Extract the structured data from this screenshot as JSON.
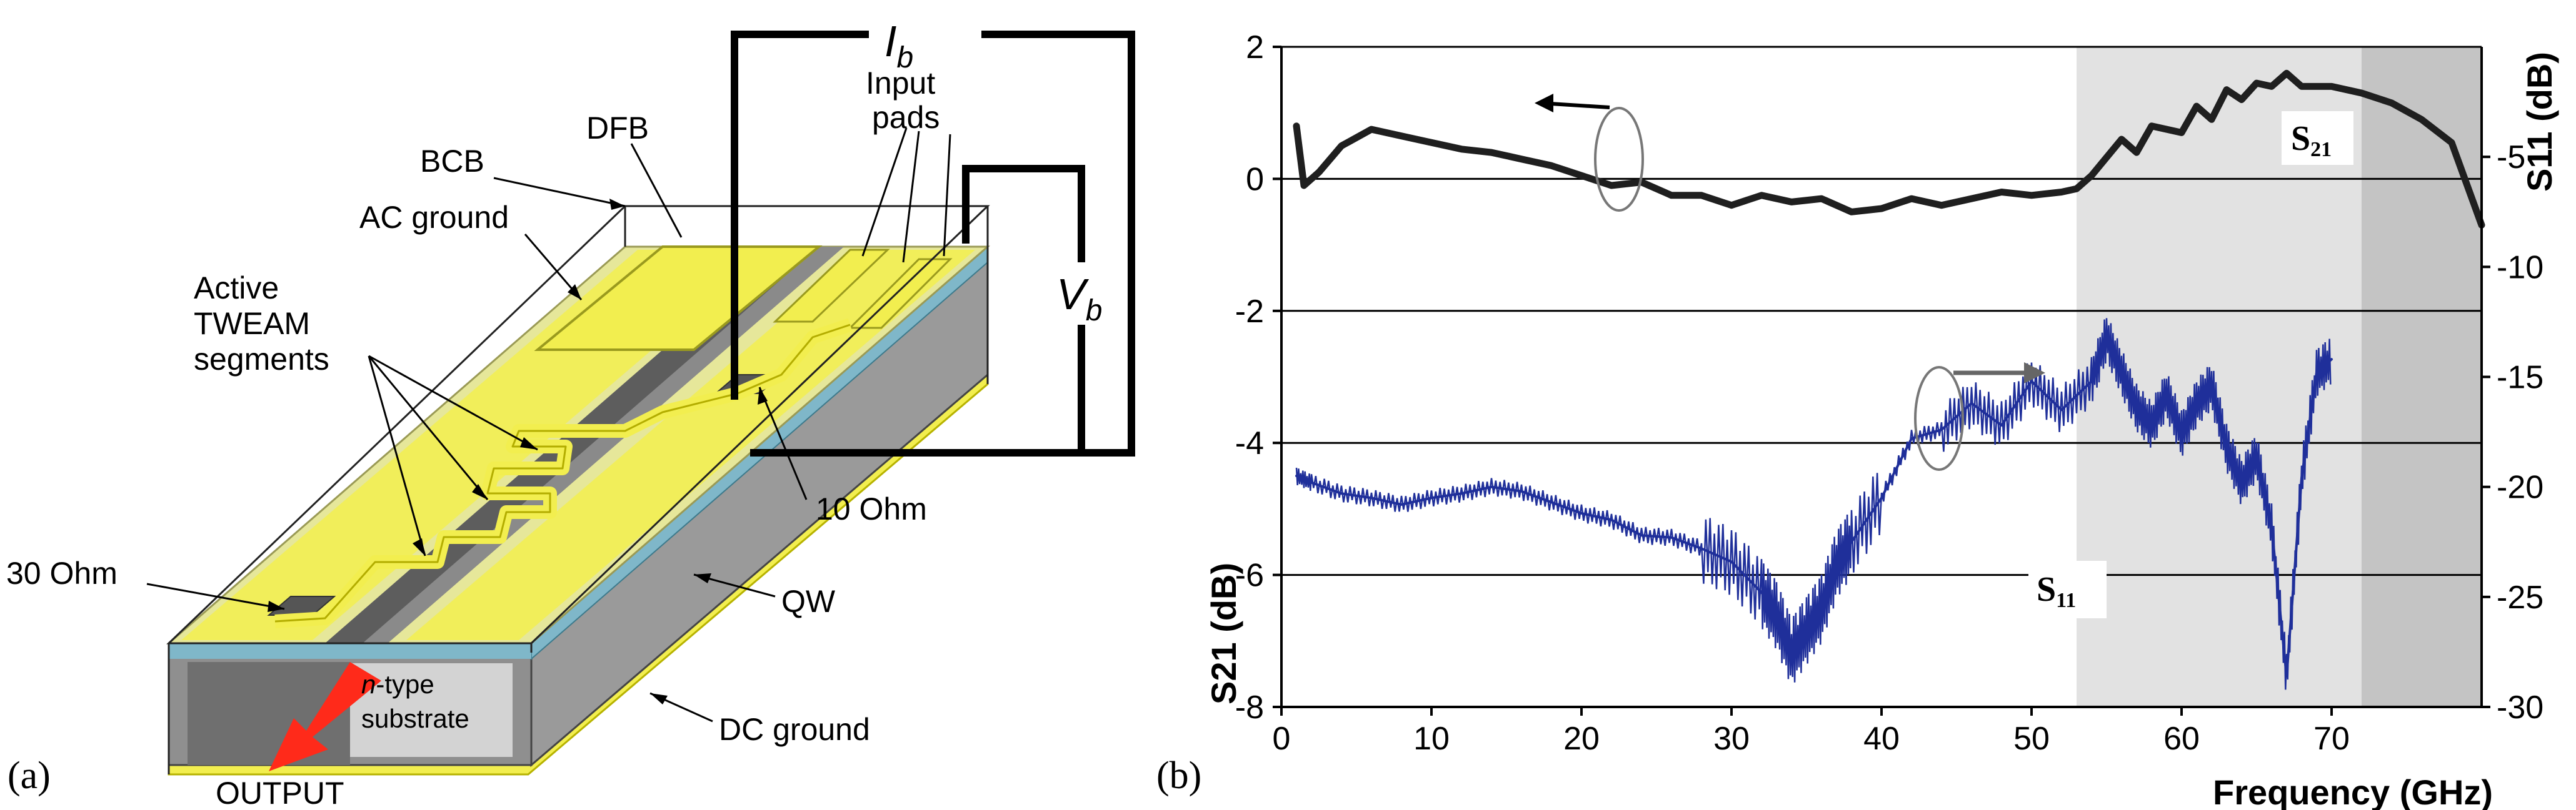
{
  "panel_a": {
    "panel_label": "(a)",
    "labels": {
      "bcb": "BCB",
      "dfb": "DFB",
      "ac_ground": "AC ground",
      "input_pads_1": "Input",
      "input_pads_2": "pads",
      "ib": "I",
      "ib_sub": "b",
      "vb": "V",
      "vb_sub": "b",
      "active_1": "Active",
      "active_2": "TWEAM",
      "active_3": "segments",
      "ohm10": "10 Ohm",
      "ohm30": "30 Ohm",
      "qw": "QW",
      "ntype_1": "n",
      "ntype_1b": "-type",
      "ntype_2": "substrate",
      "dc_ground": "DC ground",
      "output": "OUTPUT"
    },
    "colors": {
      "metal": "#f2ee4f",
      "bcb_top": "#e6e79a",
      "substrate": "#8c8c8c",
      "qw": "#7fb7c9",
      "output_arrow": "#ff2a1a"
    }
  },
  "panel_b": {
    "panel_label": "(b)",
    "s21_label": "S",
    "s21_sub": "21",
    "s11_label": "S",
    "s11_sub": "11",
    "colors": {
      "s21": "#1f1f1f",
      "s11": "#1f2f9a",
      "shade_light": "#e2e2e2",
      "shade_dark": "#c4c4c4"
    }
  },
  "chart_data": {
    "type": "line",
    "xlabel": "Frequency (GHz)",
    "ylabel_left": "S21 (dB)",
    "ylabel_right": "S11 (dB)",
    "xlim": [
      0,
      80
    ],
    "ylim_left": [
      -8,
      2
    ],
    "ylim_right": [
      -30,
      0
    ],
    "x_ticks": [
      "0",
      "10",
      "20",
      "30",
      "40",
      "50",
      "60",
      "70"
    ],
    "y_ticks_left": [
      "2",
      "0",
      "-2",
      "-4",
      "-6",
      "-8"
    ],
    "y_ticks_right": [
      "-5",
      "-10",
      "-15",
      "-20",
      "-25",
      "-30"
    ],
    "grid": "horizontal",
    "shaded_regions": [
      {
        "x_from": 53,
        "x_to": 72,
        "shade": "light"
      },
      {
        "x_from": 72,
        "x_to": 80,
        "shade": "dark"
      }
    ],
    "series": [
      {
        "name": "S21",
        "axis": "left",
        "x": [
          1,
          1.5,
          2.5,
          4,
          6,
          8,
          10,
          12,
          14,
          16,
          18,
          20,
          22,
          24,
          26,
          28,
          30,
          32,
          34,
          36,
          38,
          40,
          42,
          44,
          46,
          48,
          50,
          52,
          53,
          54,
          56,
          57,
          58,
          60,
          61,
          62,
          63,
          64,
          65,
          66,
          67,
          68,
          70,
          72,
          74,
          76,
          78,
          80
        ],
        "y": [
          0.8,
          -0.1,
          0.1,
          0.5,
          0.75,
          0.65,
          0.55,
          0.45,
          0.4,
          0.3,
          0.2,
          0.05,
          -0.1,
          -0.05,
          -0.25,
          -0.25,
          -0.4,
          -0.25,
          -0.35,
          -0.3,
          -0.5,
          -0.45,
          -0.3,
          -0.4,
          -0.3,
          -0.2,
          -0.25,
          -0.2,
          -0.15,
          0.05,
          0.6,
          0.4,
          0.8,
          0.7,
          1.1,
          0.9,
          1.35,
          1.2,
          1.45,
          1.4,
          1.6,
          1.4,
          1.4,
          1.3,
          1.15,
          0.9,
          0.55,
          -0.7
        ]
      },
      {
        "name": "S11",
        "axis": "right",
        "x": [
          1,
          2,
          4,
          6,
          8,
          10,
          12,
          14,
          16,
          18,
          20,
          22,
          24,
          26,
          28,
          30,
          32,
          33,
          34,
          35,
          36,
          37,
          38,
          40,
          42,
          44,
          46,
          48,
          50,
          52,
          54,
          55,
          56,
          57,
          58,
          59,
          60,
          61,
          62,
          63,
          64,
          65,
          66,
          67,
          68,
          69,
          70
        ],
        "y": [
          -19.5,
          -19.8,
          -20.3,
          -20.5,
          -20.8,
          -20.5,
          -20.3,
          -20,
          -20.2,
          -20.7,
          -21.2,
          -21.5,
          -22.2,
          -22.3,
          -22.8,
          -23.4,
          -24.8,
          -25.8,
          -27.5,
          -26.5,
          -25.5,
          -23.5,
          -22.5,
          -20.5,
          -17.8,
          -17.4,
          -16.2,
          -17.2,
          -15.2,
          -16.5,
          -15.2,
          -13.2,
          -14.8,
          -16.4,
          -17.2,
          -15.8,
          -17.6,
          -16.2,
          -15.4,
          -18.2,
          -19.8,
          -18.6,
          -21.8,
          -28.6,
          -19.6,
          -14.8,
          -14.2
        ]
      }
    ],
    "annotations": [
      "S21",
      "S11"
    ]
  }
}
